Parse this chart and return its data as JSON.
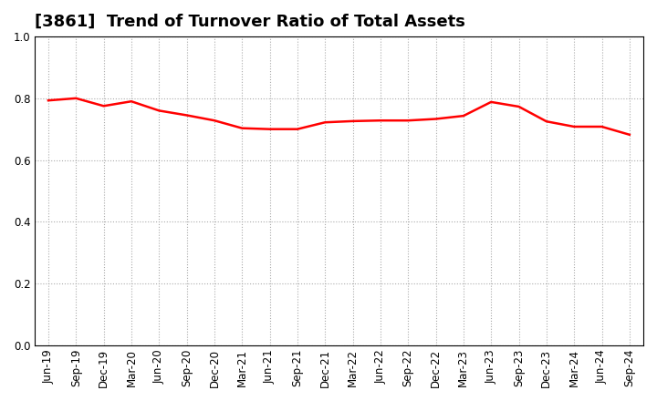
{
  "title": "[3861]  Trend of Turnover Ratio of Total Assets",
  "labels": [
    "Jun-19",
    "Sep-19",
    "Dec-19",
    "Mar-20",
    "Jun-20",
    "Sep-20",
    "Dec-20",
    "Mar-21",
    "Jun-21",
    "Sep-21",
    "Dec-21",
    "Mar-22",
    "Jun-22",
    "Sep-22",
    "Dec-22",
    "Mar-23",
    "Jun-23",
    "Sep-23",
    "Dec-23",
    "Mar-24",
    "Jun-24",
    "Sep-24"
  ],
  "values": [
    0.793,
    0.8,
    0.775,
    0.79,
    0.76,
    0.745,
    0.728,
    0.703,
    0.7,
    0.7,
    0.722,
    0.726,
    0.728,
    0.728,
    0.733,
    0.743,
    0.788,
    0.773,
    0.725,
    0.708,
    0.708,
    0.682
  ],
  "line_color": "#FF0000",
  "line_width": 1.8,
  "ylim": [
    0.0,
    1.0
  ],
  "yticks": [
    0.0,
    0.2,
    0.4,
    0.6,
    0.8,
    1.0
  ],
  "grid_color": "#aaaaaa",
  "background_color": "#ffffff",
  "title_fontsize": 13,
  "tick_fontsize": 8.5
}
